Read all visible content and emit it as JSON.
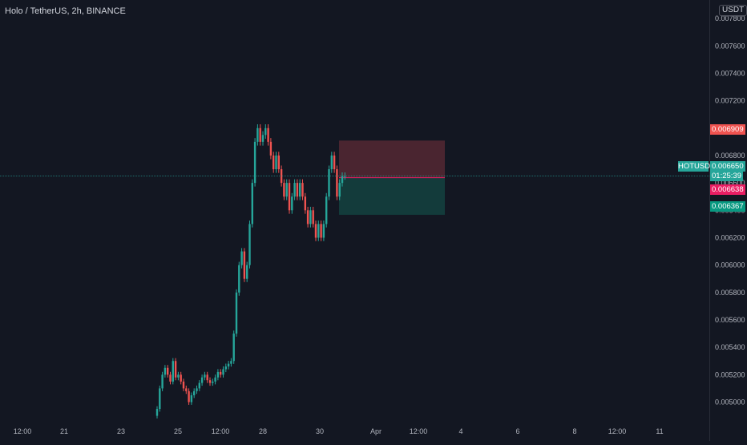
{
  "header": {
    "symbol_title": "Holo / TetherUS, 2h, BINANCE",
    "currency": "USDT"
  },
  "price_tags": {
    "symbol": "HOTUSDT",
    "current_price": "0.006650",
    "countdown": "01:25:39",
    "stop_price": "0.006909",
    "entry_price": "0.006638",
    "target_price": "0.006367"
  },
  "colors": {
    "background": "#131722",
    "up": "#26a69a",
    "down": "#ef5350",
    "stop_zone": "#4a2530",
    "target_zone": "#133b3b"
  },
  "chart_data": {
    "type": "candlestick",
    "title": "Holo / TetherUS, 2h, BINANCE",
    "y_tick_labels": [
      "0.007800",
      "0.007600",
      "0.007400",
      "0.007200",
      "0.007000",
      "0.006800",
      "0.006600",
      "0.006400",
      "0.006200",
      "0.006000",
      "0.005800",
      "0.005600",
      "0.005400",
      "0.005200",
      "0.005000"
    ],
    "x_tick_labels": [
      "12:00",
      "21",
      "23",
      "25",
      "12:00",
      "28",
      "30",
      "Apr",
      "12:00",
      "4",
      "6",
      "8",
      "12:00",
      "11"
    ],
    "ylim": [
      0.00488,
      0.0079
    ],
    "grid": false,
    "closes": [
      0.00495,
      0.0051,
      0.0052,
      0.00525,
      0.0052,
      0.00515,
      0.0053,
      0.00518,
      0.0052,
      0.00515,
      0.0051,
      0.00508,
      0.005,
      0.00505,
      0.00508,
      0.0051,
      0.00514,
      0.00518,
      0.0052,
      0.00516,
      0.00514,
      0.00515,
      0.00518,
      0.00522,
      0.0052,
      0.00524,
      0.00526,
      0.00528,
      0.0053,
      0.0055,
      0.0058,
      0.006,
      0.0061,
      0.0059,
      0.006,
      0.0063,
      0.0066,
      0.0069,
      0.007,
      0.0069,
      0.00695,
      0.007,
      0.0069,
      0.0068,
      0.0067,
      0.0068,
      0.0067,
      0.0066,
      0.0065,
      0.0066,
      0.0064,
      0.0065,
      0.0066,
      0.0065,
      0.0066,
      0.0065,
      0.0064,
      0.0063,
      0.0064,
      0.0063,
      0.0062,
      0.0063,
      0.0062,
      0.0063,
      0.0065,
      0.0067,
      0.0068,
      0.0067,
      0.0065,
      0.0066,
      0.00665,
      0.00665
    ],
    "risk_reward": {
      "entry": 0.006638,
      "stop": 0.006909,
      "target": 0.006367,
      "last_price": 0.00665
    }
  }
}
